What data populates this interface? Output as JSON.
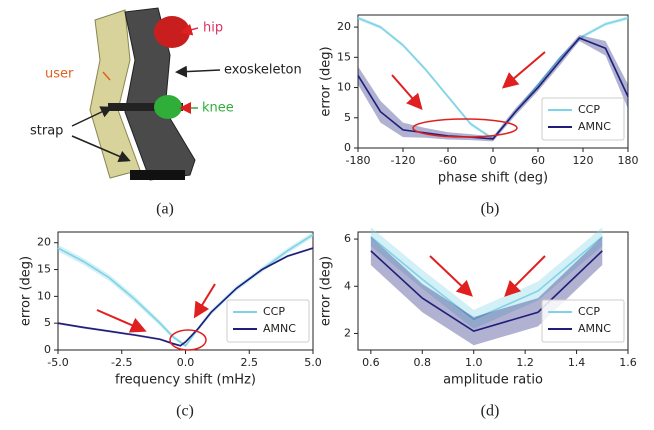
{
  "captions": [
    "(a)",
    "(b)",
    "(c)",
    "(d)"
  ],
  "diagram": {
    "labels": {
      "hip": "hip",
      "user": "user",
      "exoskeleton": "exoskeleton",
      "knee": "knee",
      "strap": "strap"
    }
  },
  "chart_data": [
    {
      "type": "line",
      "xlabel": "phase shift (deg)",
      "ylabel": "error (deg)",
      "xlim": [
        -180,
        180
      ],
      "xticks": [
        -180,
        -120,
        -60,
        0,
        60,
        120,
        180
      ],
      "ylim": [
        0,
        22
      ],
      "yticks": [
        0,
        5,
        10,
        15,
        20
      ],
      "legend": "lower right",
      "series": [
        {
          "name": "CCP",
          "color": "#7fd3e6",
          "x": [
            -180,
            -150,
            -120,
            -90,
            -60,
            -30,
            0,
            30,
            60,
            90,
            120,
            150,
            180
          ],
          "values": [
            21.5,
            20,
            17,
            13,
            8.5,
            4,
            1.5,
            6,
            10.5,
            15,
            18.5,
            20.5,
            21.5
          ],
          "errors": [
            0.3,
            0.3,
            0.3,
            0.3,
            0.3,
            0.3,
            0.3,
            0.3,
            0.3,
            0.3,
            0.3,
            0.3,
            0.3
          ]
        },
        {
          "name": "AMNC",
          "color": "#1f1f7a",
          "x": [
            -180,
            -150,
            -120,
            -90,
            -60,
            -30,
            0,
            30,
            60,
            90,
            115,
            150,
            180
          ],
          "values": [
            12,
            6,
            3,
            2.5,
            2,
            1.8,
            1.5,
            6,
            10,
            14.5,
            18.2,
            16.5,
            8.5
          ],
          "errors": [
            1.5,
            1.8,
            1.2,
            0.8,
            0.6,
            0.5,
            0.4,
            0.6,
            0.6,
            0.7,
            0.5,
            1.2,
            2
          ]
        }
      ]
    },
    {
      "type": "line",
      "xlabel": "frequency shift (mHz)",
      "ylabel": "error (deg)",
      "xlim": [
        -5,
        5
      ],
      "xticks": [
        {
          "value": -5,
          "label": "-5.0"
        },
        {
          "value": -2.5,
          "label": "-2.5"
        },
        {
          "value": 0,
          "label": "0.0"
        },
        {
          "value": 2.5,
          "label": "2.5"
        },
        {
          "value": 5,
          "label": "5.0"
        }
      ],
      "ylim": [
        0,
        22
      ],
      "yticks": [
        0,
        5,
        10,
        15,
        20
      ],
      "legend": "lower right",
      "series": [
        {
          "name": "CCP",
          "color": "#7fd3e6",
          "x": [
            -5,
            -4,
            -3,
            -2,
            -1,
            -0.5,
            0,
            0.5,
            1,
            2,
            3,
            4,
            5
          ],
          "values": [
            19,
            16.5,
            13.5,
            9.5,
            5,
            2.5,
            0.8,
            4,
            7,
            11.5,
            15,
            18.5,
            21.5
          ],
          "errors": [
            0.6,
            0.6,
            0.6,
            0.6,
            0.5,
            0.4,
            0.3,
            0.4,
            0.5,
            0.5,
            0.5,
            0.5,
            0.5
          ]
        },
        {
          "name": "AMNC",
          "color": "#1f1f7a",
          "x": [
            -5,
            -4,
            -3,
            -2,
            -1,
            -0.5,
            -0.2,
            0,
            0.5,
            1,
            2,
            3,
            4,
            5
          ],
          "values": [
            5,
            4.2,
            3.5,
            2.8,
            2,
            1.2,
            0.8,
            1.5,
            4,
            7,
            11.5,
            15,
            17.5,
            19
          ],
          "errors": [
            0.2,
            0.2,
            0.2,
            0.2,
            0.2,
            0.2,
            0.2,
            0.2,
            0.2,
            0.2,
            0.2,
            0.2,
            0.2,
            0.2
          ]
        }
      ]
    },
    {
      "type": "line",
      "xlabel": "amplitude ratio",
      "ylabel": "error (deg)",
      "xlim": [
        0.55,
        1.6
      ],
      "xticks": [
        0.6,
        0.8,
        {
          "value": 1,
          "label": "1.0"
        },
        1.2,
        1.4,
        1.6
      ],
      "ylim": [
        1.3,
        6.3
      ],
      "yticks": [
        2,
        4,
        6
      ],
      "legend": "lower right",
      "series": [
        {
          "name": "CCP",
          "color": "#7fd3e6",
          "x": [
            0.6,
            0.8,
            1,
            1.25,
            1.5
          ],
          "values": [
            6.1,
            4.3,
            2.6,
            3.8,
            6.1
          ],
          "errors": [
            0.4,
            0.4,
            0.4,
            0.4,
            0.4
          ]
        },
        {
          "name": "AMNC",
          "color": "#1f1f7a",
          "x": [
            0.6,
            0.8,
            1,
            1.25,
            1.5
          ],
          "values": [
            5.5,
            3.5,
            2.1,
            2.9,
            5.5
          ],
          "errors": [
            0.6,
            0.6,
            0.6,
            0.6,
            0.6
          ]
        }
      ]
    }
  ]
}
